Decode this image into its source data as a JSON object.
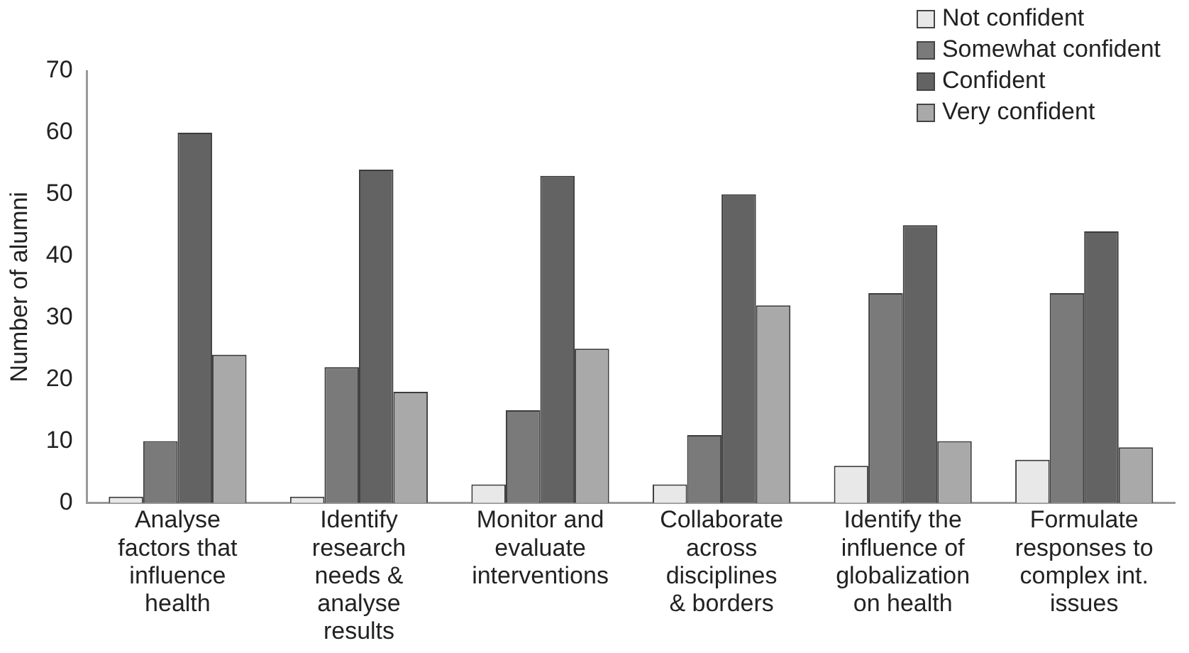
{
  "chart_data": {
    "type": "bar",
    "ylabel": "Number of alumni",
    "categories": [
      "Analyse factors that influence health",
      "Identify research needs & analyse results",
      "Monitor and evaluate interventions",
      "Collaborate across disciplines & borders",
      "Identify the influence of globalization on health",
      "Formulate responses to complex int. issues"
    ],
    "series": [
      {
        "name": "Not confident",
        "color": "#e8e8e8",
        "values": [
          1,
          1,
          3,
          3,
          6,
          7
        ]
      },
      {
        "name": "Somewhat confident",
        "color": "#7a7a7a",
        "values": [
          10,
          22,
          15,
          11,
          34,
          34
        ]
      },
      {
        "name": "Confident",
        "color": "#636363",
        "values": [
          60,
          54,
          53,
          50,
          45,
          44
        ]
      },
      {
        "name": "Very confident",
        "color": "#a9a9a9",
        "values": [
          24,
          18,
          25,
          32,
          10,
          9
        ]
      }
    ],
    "ylim": [
      0,
      70
    ],
    "yticks": [
      0,
      10,
      20,
      30,
      40,
      50,
      60,
      70
    ],
    "grid": false,
    "legend": "top right"
  }
}
